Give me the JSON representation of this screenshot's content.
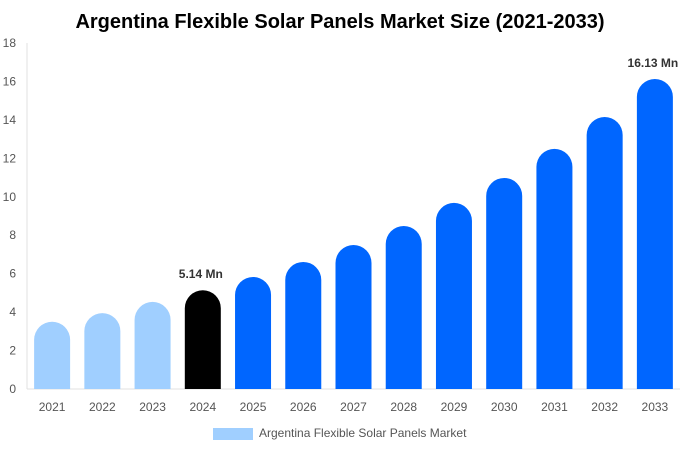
{
  "chart_data": {
    "type": "bar",
    "title": "Argentina Flexible Solar Panels Market Size (2021-2033)",
    "xlabel": "",
    "ylabel": "",
    "ylim": [
      0,
      18
    ],
    "yticks": [
      0,
      2,
      4,
      6,
      8,
      10,
      12,
      14,
      16,
      18
    ],
    "categories": [
      "2021",
      "2022",
      "2023",
      "2024",
      "2025",
      "2026",
      "2027",
      "2028",
      "2029",
      "2030",
      "2031",
      "2032",
      "2033"
    ],
    "series": [
      {
        "name": "Argentina Flexible Solar Panels Market",
        "values": [
          3.5,
          3.95,
          4.53,
          5.14,
          5.83,
          6.61,
          7.49,
          8.48,
          9.68,
          10.98,
          12.49,
          14.15,
          16.13
        ]
      }
    ],
    "bar_colors": [
      "#a0cfff",
      "#a0cfff",
      "#a0cfff",
      "#000000",
      "#0066ff",
      "#0066ff",
      "#0066ff",
      "#0066ff",
      "#0066ff",
      "#0066ff",
      "#0066ff",
      "#0066ff",
      "#0066ff"
    ],
    "data_labels": [
      {
        "index": 3,
        "text": "5.14 Mn"
      },
      {
        "index": 12,
        "text": "16.13 Mn"
      }
    ],
    "legend": {
      "position": "bottom",
      "color": "#a0cfff"
    },
    "grid": false
  }
}
